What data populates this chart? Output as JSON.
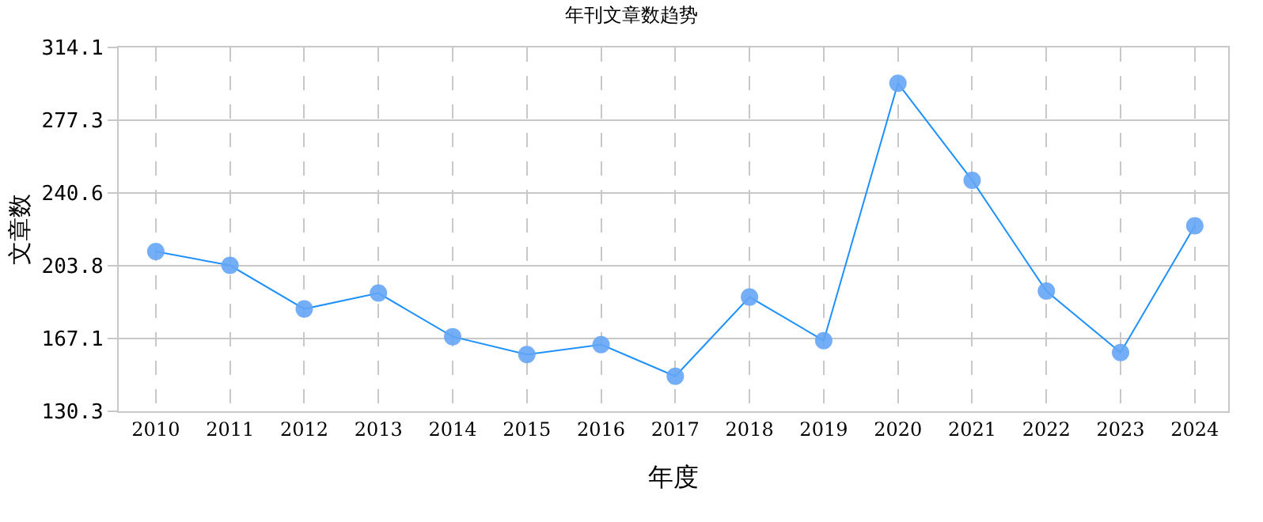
{
  "chart_data": {
    "type": "line",
    "title": "年刊文章数趋势",
    "xlabel": "年度",
    "ylabel": "文章数",
    "categories": [
      "2010",
      "2011",
      "2012",
      "2013",
      "2014",
      "2015",
      "2016",
      "2017",
      "2018",
      "2019",
      "2020",
      "2021",
      "2022",
      "2023",
      "2024"
    ],
    "series": [
      {
        "color": "#1e90ff",
        "values": [
          211,
          204,
          182,
          190,
          168,
          159,
          164,
          148,
          188,
          166,
          296,
          247,
          191,
          160,
          224
        ]
      }
    ],
    "ylim": [
      130.3,
      314.1
    ],
    "yticks": [
      130.3,
      167.1,
      203.8,
      240.6,
      277.3,
      314.1
    ],
    "grid": true,
    "marker": "circle",
    "line_style": "solid",
    "legend": false
  }
}
